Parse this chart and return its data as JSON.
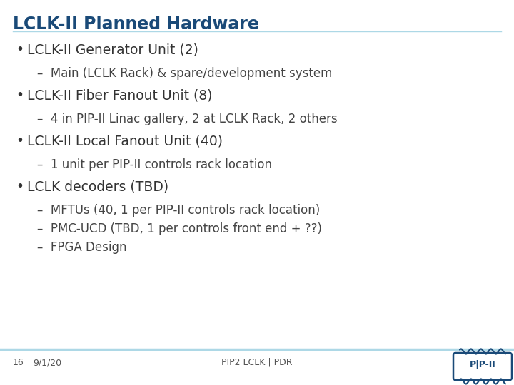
{
  "title": "LCLK-II Planned Hardware",
  "title_color": "#1A4A78",
  "title_fontsize": 17,
  "background_color": "#FFFFFF",
  "bullet_color": "#333333",
  "bullet_fontsize": 13.5,
  "sub_bullet_fontsize": 12,
  "sub_bullet_color": "#444444",
  "footer_line_color": "#ADD8E6",
  "bullets": [
    {
      "text": "LCLK-II Generator Unit (2)",
      "subs": [
        "Main (LCLK Rack) & spare/development system"
      ]
    },
    {
      "text": "LCLK-II Fiber Fanout Unit (8)",
      "subs": [
        "4 in PIP-II Linac gallery, 2 at LCLK Rack, 2 others"
      ]
    },
    {
      "text": "LCLK-II Local Fanout Unit (40)",
      "subs": [
        "1 unit per PIP-II controls rack location"
      ]
    },
    {
      "text": "LCLK decoders (TBD)",
      "subs": [
        "MFTUs (40, 1 per PIP-II controls rack location)",
        "PMC-UCD (TBD, 1 per controls front end + ??)",
        "FPGA Design"
      ]
    }
  ],
  "footer_left_page": "16",
  "footer_left_date": "9/1/20",
  "footer_center": "PIP2 LCLK | PDR",
  "pip2_logo_color": "#1A4A78"
}
